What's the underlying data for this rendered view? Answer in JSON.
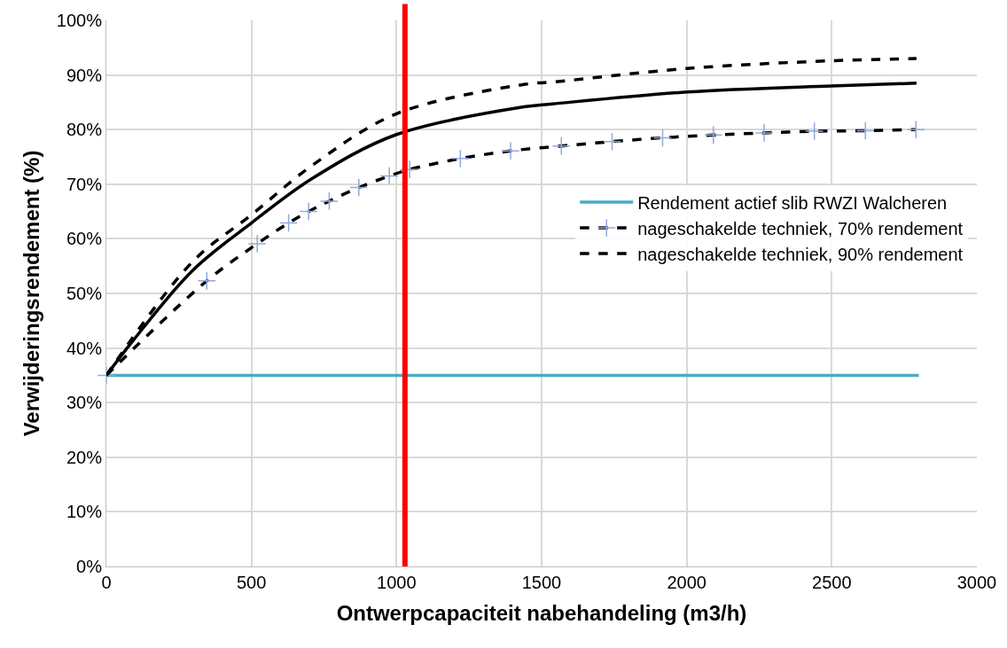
{
  "chart_data": {
    "type": "line",
    "xlabel": "Ontwerpcapaciteit nabehandeling (m3/h)",
    "ylabel": "Verwijderingsrendement (%)",
    "xlim": [
      0,
      3000
    ],
    "xticks": [
      0,
      500,
      1000,
      1500,
      2000,
      2500,
      3000
    ],
    "ylim": [
      0,
      100
    ],
    "yticks": [
      {
        "value": 0,
        "label": "0%"
      },
      {
        "value": 10,
        "label": "10%"
      },
      {
        "value": 20,
        "label": "20%"
      },
      {
        "value": 30,
        "label": "30%"
      },
      {
        "value": 40,
        "label": "40%"
      },
      {
        "value": 50,
        "label": "50%"
      },
      {
        "value": 60,
        "label": "60%"
      },
      {
        "value": 70,
        "label": "70%"
      },
      {
        "value": 80,
        "label": "80%"
      },
      {
        "value": 90,
        "label": "90%"
      },
      {
        "value": 100,
        "label": "100%"
      }
    ],
    "grid": true,
    "legend": "right",
    "ref_lines": [
      {
        "axis": "x",
        "value": 1029,
        "color": "#ff0000"
      }
    ],
    "series": [
      {
        "name": "Rendement actief slib RWZI Walcheren",
        "color": "#4bacc6",
        "line_style": "solid",
        "x": [
          0,
          2800
        ],
        "values": [
          35,
          35
        ]
      },
      {
        "name": "nageschakelde techniek, 70% rendement",
        "color": "#000000",
        "line_style": "dashed",
        "marker": "cross",
        "x": [
          0,
          346,
          520,
          628,
          697,
          768,
          870,
          975,
          1045,
          1220,
          1393,
          1568,
          1743,
          1917,
          2092,
          2267,
          2440,
          2616,
          2790
        ],
        "values": [
          35,
          52.3,
          59.1,
          62.9,
          65.0,
          66.9,
          69.4,
          71.5,
          72.7,
          74.7,
          76.1,
          77.0,
          77.8,
          78.5,
          79.0,
          79.4,
          79.7,
          79.8,
          80.0
        ]
      },
      {
        "color": "#000000",
        "line_style": "solid",
        "marker": "none",
        "x": [
          0,
          91,
          297,
          500,
          711,
          1000,
          1444,
          1537,
          2002,
          2498,
          2792
        ],
        "values": [
          35,
          41.3,
          54.2,
          62.9,
          71.1,
          79.1,
          84.2,
          84.7,
          86.9,
          88.0,
          88.5
        ]
      },
      {
        "name": "nageschakelde techniek, 90% rendement",
        "color": "#000000",
        "line_style": "dashed",
        "marker": "none",
        "x": [
          0,
          297,
          500,
          711,
          1000,
          1444,
          1537,
          2002,
          2498,
          2792
        ],
        "values": [
          35,
          55.8,
          64.4,
          73.5,
          82.9,
          88.3,
          88.7,
          91.2,
          92.6,
          93.0
        ]
      }
    ]
  }
}
